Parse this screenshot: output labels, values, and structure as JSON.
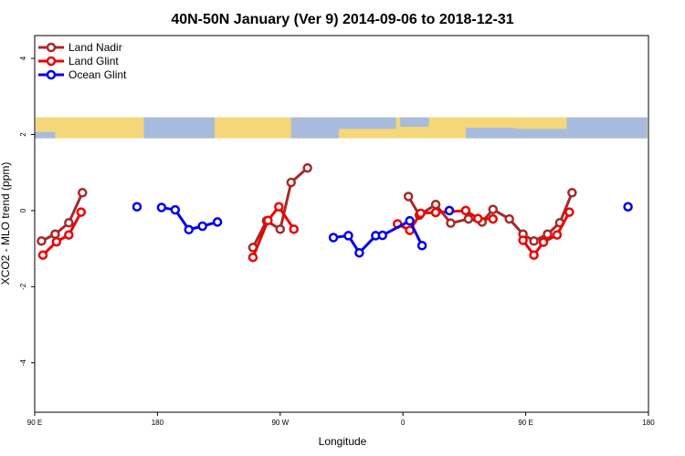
{
  "chart_data": {
    "type": "line",
    "title": "40N-50N January (Ver 9)   2014-09-06 to 2018-12-31",
    "xlabel": "Longitude",
    "ylabel": "XCO2 - MLO trend (ppm)",
    "xlim": [
      -90,
      360
    ],
    "ylim": [
      -5.3,
      4.6
    ],
    "x_ticks": [
      {
        "value": -90,
        "label": "90 E"
      },
      {
        "value": 0,
        "label": "180"
      },
      {
        "value": 90,
        "label": "90 W"
      },
      {
        "value": 180,
        "label": "0"
      },
      {
        "value": 270,
        "label": "90 E"
      },
      {
        "value": 360,
        "label": "180"
      }
    ],
    "y_ticks": [
      {
        "value": -4,
        "label": "-4"
      },
      {
        "value": -2,
        "label": "-2"
      },
      {
        "value": 0,
        "label": "0"
      },
      {
        "value": 2,
        "label": "2"
      },
      {
        "value": 4,
        "label": "4"
      }
    ],
    "legend": {
      "position": "top-left"
    },
    "map_strip": {
      "y_range": [
        1.9,
        2.45
      ],
      "land_color": "#f5d77a",
      "ocean_color": "#a7bcdc"
    },
    "series": [
      {
        "name": "Land Nadir",
        "color": "#a52a2a",
        "segments": [
          [
            [
              -85,
              -0.8
            ],
            [
              -75,
              -0.62
            ],
            [
              -65,
              -0.32
            ],
            [
              -55,
              0.47
            ]
          ],
          [
            [
              70,
              -0.97
            ],
            [
              80,
              -0.27
            ],
            [
              90,
              -0.49
            ],
            [
              98,
              0.74
            ],
            [
              110,
              1.12
            ]
          ],
          [
            [
              184,
              0.37
            ],
            [
              192,
              -0.12
            ],
            [
              204,
              0.16
            ],
            [
              215,
              -0.33
            ],
            [
              228,
              -0.22
            ],
            [
              238,
              -0.3
            ],
            [
              246,
              0.03
            ],
            [
              258,
              -0.22
            ],
            [
              268,
              -0.62
            ],
            [
              276,
              -0.8
            ],
            [
              286,
              -0.62
            ],
            [
              295,
              -0.32
            ],
            [
              304,
              0.47
            ]
          ]
        ]
      },
      {
        "name": "Land Glint",
        "color": "#ee0000",
        "segments": [
          [
            [
              -84,
              -1.17
            ],
            [
              -74,
              -0.82
            ],
            [
              -65,
              -0.64
            ],
            [
              -56,
              -0.04
            ]
          ],
          [
            [
              70,
              -1.23
            ],
            [
              81,
              -0.26
            ],
            [
              89,
              0.1
            ],
            [
              100,
              -0.49
            ]
          ],
          [
            [
              176,
              -0.35
            ],
            [
              185,
              -0.52
            ],
            [
              193,
              -0.07
            ],
            [
              204,
              -0.05
            ],
            [
              226,
              0.0
            ],
            [
              235,
              -0.21
            ],
            [
              246,
              -0.22
            ]
          ],
          [
            [
              268,
              -0.78
            ],
            [
              276,
              -1.17
            ],
            [
              283,
              -0.83
            ],
            [
              293,
              -0.64
            ],
            [
              302,
              -0.04
            ]
          ]
        ]
      },
      {
        "name": "Ocean Glint",
        "color": "#0000ee",
        "segments": [
          [
            [
              -15,
              0.1
            ]
          ],
          [
            [
              3,
              0.08
            ],
            [
              13,
              0.02
            ],
            [
              23,
              -0.5
            ],
            [
              33,
              -0.41
            ],
            [
              44,
              -0.3
            ]
          ],
          [
            [
              129,
              -0.71
            ],
            [
              140,
              -0.66
            ],
            [
              148,
              -1.11
            ],
            [
              160,
              -0.66
            ],
            [
              165,
              -0.65
            ],
            [
              185,
              -0.27
            ],
            [
              194,
              -0.92
            ]
          ],
          [
            [
              214,
              0.0
            ]
          ],
          [
            [
              345,
              0.1
            ]
          ]
        ]
      }
    ]
  }
}
